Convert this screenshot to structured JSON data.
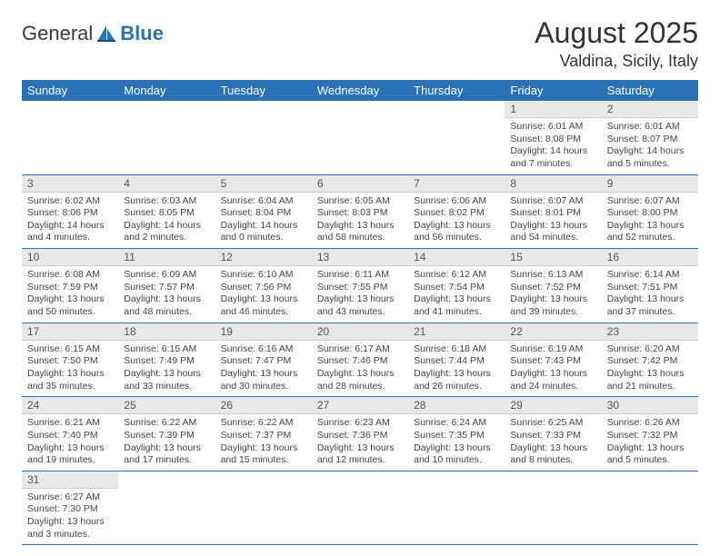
{
  "brand": {
    "name1": "General",
    "name2": "Blue"
  },
  "title": "August 2025",
  "location": "Valdina, Sicily, Italy",
  "colors": {
    "accent": "#2a72b5",
    "daynum_bg": "#e8e8e8",
    "text": "#333333"
  },
  "weekdays": [
    "Sunday",
    "Monday",
    "Tuesday",
    "Wednesday",
    "Thursday",
    "Friday",
    "Saturday"
  ],
  "grid": [
    [
      null,
      null,
      null,
      null,
      null,
      {
        "n": "1",
        "sunrise": "6:01 AM",
        "sunset": "8:08 PM",
        "dlh": "14",
        "dlm": "7"
      },
      {
        "n": "2",
        "sunrise": "6:01 AM",
        "sunset": "8:07 PM",
        "dlh": "14",
        "dlm": "5"
      }
    ],
    [
      {
        "n": "3",
        "sunrise": "6:02 AM",
        "sunset": "8:06 PM",
        "dlh": "14",
        "dlm": "4"
      },
      {
        "n": "4",
        "sunrise": "6:03 AM",
        "sunset": "8:05 PM",
        "dlh": "14",
        "dlm": "2"
      },
      {
        "n": "5",
        "sunrise": "6:04 AM",
        "sunset": "8:04 PM",
        "dlh": "14",
        "dlm": "0"
      },
      {
        "n": "6",
        "sunrise": "6:05 AM",
        "sunset": "8:03 PM",
        "dlh": "13",
        "dlm": "58"
      },
      {
        "n": "7",
        "sunrise": "6:06 AM",
        "sunset": "8:02 PM",
        "dlh": "13",
        "dlm": "56"
      },
      {
        "n": "8",
        "sunrise": "6:07 AM",
        "sunset": "8:01 PM",
        "dlh": "13",
        "dlm": "54"
      },
      {
        "n": "9",
        "sunrise": "6:07 AM",
        "sunset": "8:00 PM",
        "dlh": "13",
        "dlm": "52"
      }
    ],
    [
      {
        "n": "10",
        "sunrise": "6:08 AM",
        "sunset": "7:59 PM",
        "dlh": "13",
        "dlm": "50"
      },
      {
        "n": "11",
        "sunrise": "6:09 AM",
        "sunset": "7:57 PM",
        "dlh": "13",
        "dlm": "48"
      },
      {
        "n": "12",
        "sunrise": "6:10 AM",
        "sunset": "7:56 PM",
        "dlh": "13",
        "dlm": "46"
      },
      {
        "n": "13",
        "sunrise": "6:11 AM",
        "sunset": "7:55 PM",
        "dlh": "13",
        "dlm": "43"
      },
      {
        "n": "14",
        "sunrise": "6:12 AM",
        "sunset": "7:54 PM",
        "dlh": "13",
        "dlm": "41"
      },
      {
        "n": "15",
        "sunrise": "6:13 AM",
        "sunset": "7:52 PM",
        "dlh": "13",
        "dlm": "39"
      },
      {
        "n": "16",
        "sunrise": "6:14 AM",
        "sunset": "7:51 PM",
        "dlh": "13",
        "dlm": "37"
      }
    ],
    [
      {
        "n": "17",
        "sunrise": "6:15 AM",
        "sunset": "7:50 PM",
        "dlh": "13",
        "dlm": "35"
      },
      {
        "n": "18",
        "sunrise": "6:15 AM",
        "sunset": "7:49 PM",
        "dlh": "13",
        "dlm": "33"
      },
      {
        "n": "19",
        "sunrise": "6:16 AM",
        "sunset": "7:47 PM",
        "dlh": "13",
        "dlm": "30"
      },
      {
        "n": "20",
        "sunrise": "6:17 AM",
        "sunset": "7:46 PM",
        "dlh": "13",
        "dlm": "28"
      },
      {
        "n": "21",
        "sunrise": "6:18 AM",
        "sunset": "7:44 PM",
        "dlh": "13",
        "dlm": "26"
      },
      {
        "n": "22",
        "sunrise": "6:19 AM",
        "sunset": "7:43 PM",
        "dlh": "13",
        "dlm": "24"
      },
      {
        "n": "23",
        "sunrise": "6:20 AM",
        "sunset": "7:42 PM",
        "dlh": "13",
        "dlm": "21"
      }
    ],
    [
      {
        "n": "24",
        "sunrise": "6:21 AM",
        "sunset": "7:40 PM",
        "dlh": "13",
        "dlm": "19"
      },
      {
        "n": "25",
        "sunrise": "6:22 AM",
        "sunset": "7:39 PM",
        "dlh": "13",
        "dlm": "17"
      },
      {
        "n": "26",
        "sunrise": "6:22 AM",
        "sunset": "7:37 PM",
        "dlh": "13",
        "dlm": "15"
      },
      {
        "n": "27",
        "sunrise": "6:23 AM",
        "sunset": "7:36 PM",
        "dlh": "13",
        "dlm": "12"
      },
      {
        "n": "28",
        "sunrise": "6:24 AM",
        "sunset": "7:35 PM",
        "dlh": "13",
        "dlm": "10"
      },
      {
        "n": "29",
        "sunrise": "6:25 AM",
        "sunset": "7:33 PM",
        "dlh": "13",
        "dlm": "8"
      },
      {
        "n": "30",
        "sunrise": "6:26 AM",
        "sunset": "7:32 PM",
        "dlh": "13",
        "dlm": "5"
      }
    ],
    [
      {
        "n": "31",
        "sunrise": "6:27 AM",
        "sunset": "7:30 PM",
        "dlh": "13",
        "dlm": "3"
      },
      null,
      null,
      null,
      null,
      null,
      null
    ]
  ],
  "labels": {
    "sunrise": "Sunrise",
    "sunset": "Sunset",
    "daylight": "Daylight",
    "hours": "hours",
    "and": "and",
    "minutes": "minutes"
  }
}
